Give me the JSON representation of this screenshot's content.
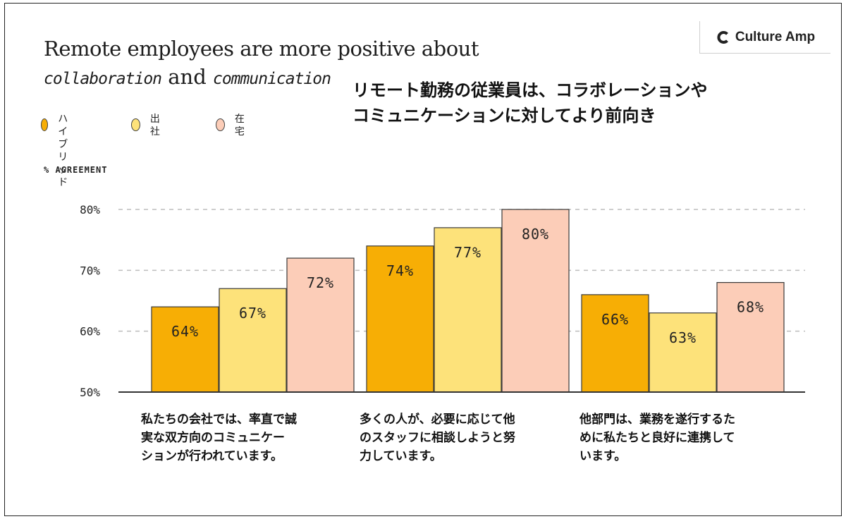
{
  "brand": {
    "name": "Culture Amp",
    "logo_icon": "culture-amp-c-icon"
  },
  "title": {
    "en_line1": "Remote employees are more positive about",
    "en_line2_a": "collaboration",
    "en_line2_b": " and ",
    "en_line2_c": "communication",
    "jp_line1": "リモート勤務の従業員は、コラボレーションや",
    "jp_line2": "コミュニケーションに対してより前向き"
  },
  "chart_data": {
    "type": "bar",
    "ylabel": "% AGREEMENT",
    "ylim": [
      50,
      80
    ],
    "yticks": [
      "50%",
      "60%",
      "70%",
      "80%"
    ],
    "grid": true,
    "legend_position": "top-left",
    "categories": [
      "私たちの会社では、率直で誠実な双方向のコミュニケーションが行われています。",
      "多くの人が、必要に応じて他のスタッフに相談しようと努力しています。",
      "他部門は、業務を遂行するために私たちと良好に連携しています。"
    ],
    "category_lines": [
      [
        "私たちの会社では、率直で誠",
        "実な双方向のコミュニケー",
        "ションが行われています。"
      ],
      [
        "多くの人が、必要に応じて他",
        "のスタッフに相談しようと努",
        "力しています。"
      ],
      [
        "他部門は、業務を遂行するた",
        "めに私たちと良好に連携して",
        "います。"
      ]
    ],
    "series": [
      {
        "name": "ハイブリッド",
        "legend_text": "ハイブ\nリッド",
        "color": "#F7AE05",
        "values": [
          64,
          74,
          66
        ],
        "labels": [
          "64%",
          "74%",
          "66%"
        ]
      },
      {
        "name": "出社",
        "legend_text": "出社",
        "color": "#FDE27A",
        "values": [
          67,
          77,
          63
        ],
        "labels": [
          "67%",
          "77%",
          "63%"
        ]
      },
      {
        "name": "在宅",
        "legend_text": "在宅",
        "color": "#FCCDB8",
        "values": [
          72,
          80,
          68
        ],
        "labels": [
          "72%",
          "80%",
          "68%"
        ]
      }
    ]
  }
}
